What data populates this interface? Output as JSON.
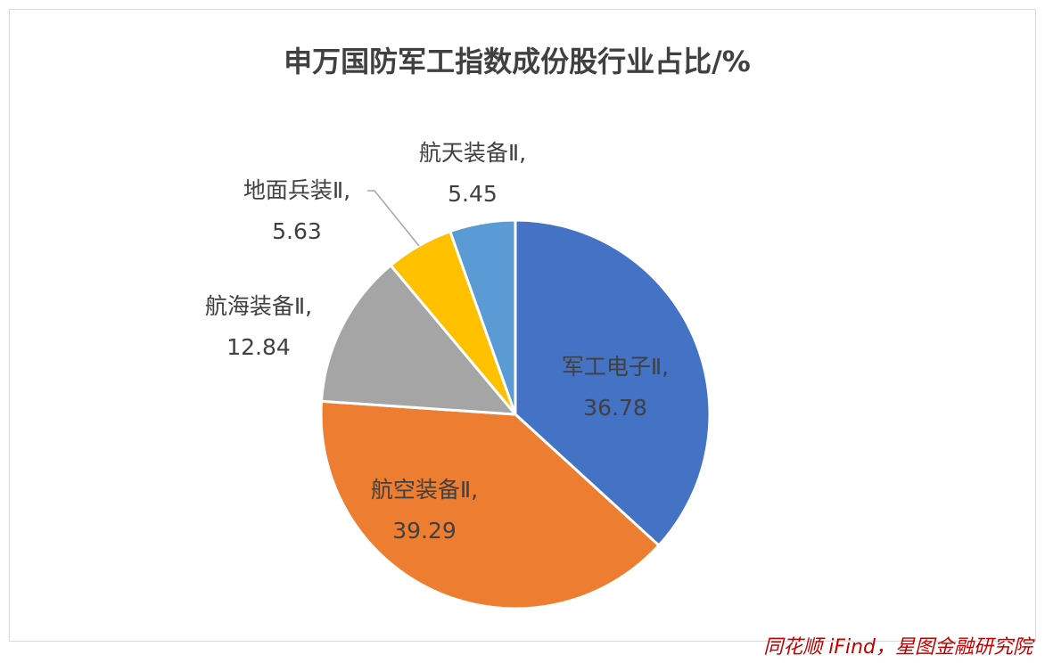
{
  "chart_data": {
    "type": "pie",
    "title": "申万国防军工指数成份股行业占比/%",
    "slices": [
      {
        "label": "军工电子Ⅱ,",
        "value": 36.78,
        "value_text": "36.78",
        "color": "#4472c4"
      },
      {
        "label": "航空装备Ⅱ,",
        "value": 39.29,
        "value_text": "39.29",
        "color": "#ed7d31"
      },
      {
        "label": "航海装备Ⅱ,",
        "value": 12.84,
        "value_text": "12.84",
        "color": "#a5a5a5"
      },
      {
        "label": "地面兵装Ⅱ,",
        "value": 5.63,
        "value_text": "5.63",
        "color": "#ffc000"
      },
      {
        "label": "航天装备Ⅱ,",
        "value": 5.45,
        "value_text": "5.45",
        "color": "#5b9bd5"
      }
    ],
    "start": "12 o'clock",
    "direction": "clockwise",
    "legend": "none"
  },
  "source": "同花顺 iFind，星图金融研究院"
}
